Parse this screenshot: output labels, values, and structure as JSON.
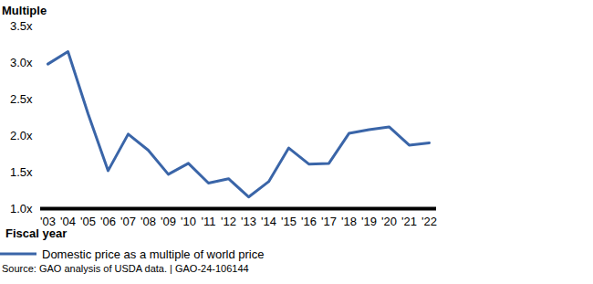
{
  "chart_data": {
    "type": "line",
    "y_label": "Multiple",
    "x_label": "Fiscal year",
    "categories": [
      "'03",
      "'04",
      "'05",
      "'06",
      "'07",
      "'08",
      "'09",
      "'10",
      "'11",
      "'12",
      "'13",
      "'14",
      "'15",
      "'16",
      "'17",
      "'18",
      "'19",
      "'20",
      "'21",
      "'22"
    ],
    "series": [
      {
        "name": "Domestic price as a multiple of world price",
        "color": "#3a65a8",
        "values": [
          2.98,
          3.15,
          2.3,
          1.52,
          2.02,
          1.8,
          1.47,
          1.62,
          1.35,
          1.41,
          1.16,
          1.37,
          1.83,
          1.61,
          1.62,
          2.03,
          2.08,
          2.12,
          1.87,
          1.9
        ]
      }
    ],
    "ylim": [
      1.0,
      3.5
    ],
    "yticks": [
      {
        "value": 1.0,
        "label": "1.0x"
      },
      {
        "value": 1.5,
        "label": "1.5x"
      },
      {
        "value": 2.0,
        "label": "2.0x"
      },
      {
        "value": 2.5,
        "label": "2.5x"
      },
      {
        "value": 3.0,
        "label": "3.0x"
      },
      {
        "value": 3.5,
        "label": "3.5x"
      }
    ],
    "grid": false,
    "legend": "bottom",
    "source": "Source: GAO analysis of USDA data.  |  GAO-24-106144"
  }
}
